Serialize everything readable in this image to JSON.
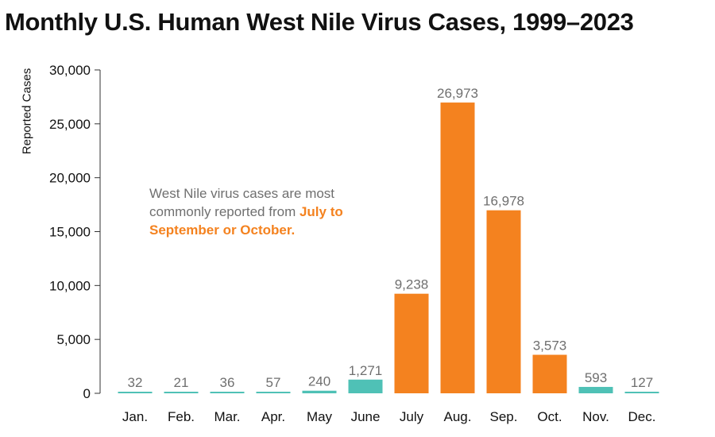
{
  "title": "Monthly U.S. Human West Nile Virus Cases, 1999–2023",
  "callout": {
    "text": "West Nile virus cases are most commonly reported from ",
    "highlight": "July to September or October."
  },
  "colors": {
    "peak": "#f4821f",
    "offpeak": "#4fc1b6",
    "label": "#6f6f6f",
    "axis": "#333333"
  },
  "chart_data": {
    "type": "bar",
    "title": "Monthly U.S. Human West Nile Virus Cases, 1999–2023",
    "xlabel": "",
    "ylabel": "Reported Cases",
    "ylim": [
      0,
      30000
    ],
    "yticks": [
      0,
      5000,
      10000,
      15000,
      20000,
      25000,
      30000
    ],
    "ytick_labels": [
      "0",
      "5,000",
      "10,000",
      "15,000",
      "20,000",
      "25,000",
      "30,000"
    ],
    "categories": [
      "Jan.",
      "Feb.",
      "Mar.",
      "Apr.",
      "May",
      "June",
      "July",
      "Aug.",
      "Sep.",
      "Oct.",
      "Nov.",
      "Dec."
    ],
    "values": [
      32,
      21,
      36,
      57,
      240,
      1271,
      9238,
      26973,
      16978,
      3573,
      593,
      127
    ],
    "value_labels": [
      "32",
      "21",
      "36",
      "57",
      "240",
      "1,271",
      "9,238",
      "26,973",
      "16,978",
      "3,573",
      "593",
      "127"
    ],
    "highlighted": [
      false,
      false,
      false,
      false,
      false,
      false,
      true,
      true,
      true,
      true,
      false,
      false
    ]
  }
}
